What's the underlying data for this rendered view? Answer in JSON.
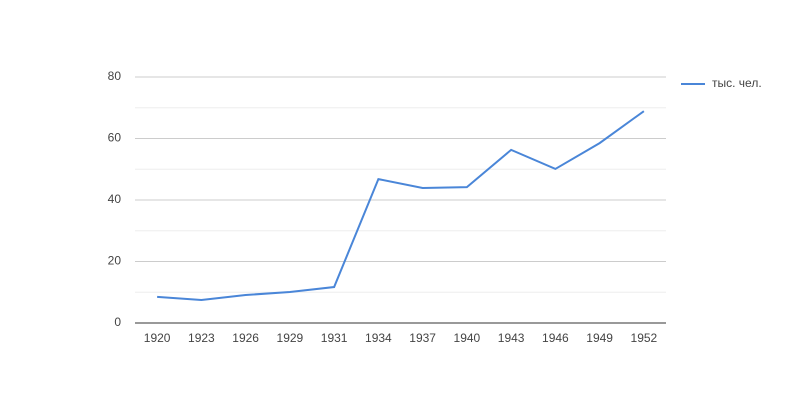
{
  "chart_data": {
    "type": "line",
    "categories": [
      "1920",
      "1923",
      "1926",
      "1929",
      "1931",
      "1934",
      "1937",
      "1940",
      "1943",
      "1946",
      "1949",
      "1952"
    ],
    "series": [
      {
        "name": "тыс. чел.",
        "color": "#4a86d8",
        "values": [
          8.5,
          7.5,
          9.1,
          10.1,
          11.7,
          46.8,
          43.9,
          44.2,
          56.3,
          50.1,
          58.5,
          68.9
        ]
      }
    ],
    "ylim": [
      0,
      80
    ],
    "yticks": [
      0,
      20,
      40,
      60,
      80
    ],
    "minor_yticks": [
      10,
      30,
      50,
      70
    ],
    "grid": true,
    "legend": "right"
  }
}
